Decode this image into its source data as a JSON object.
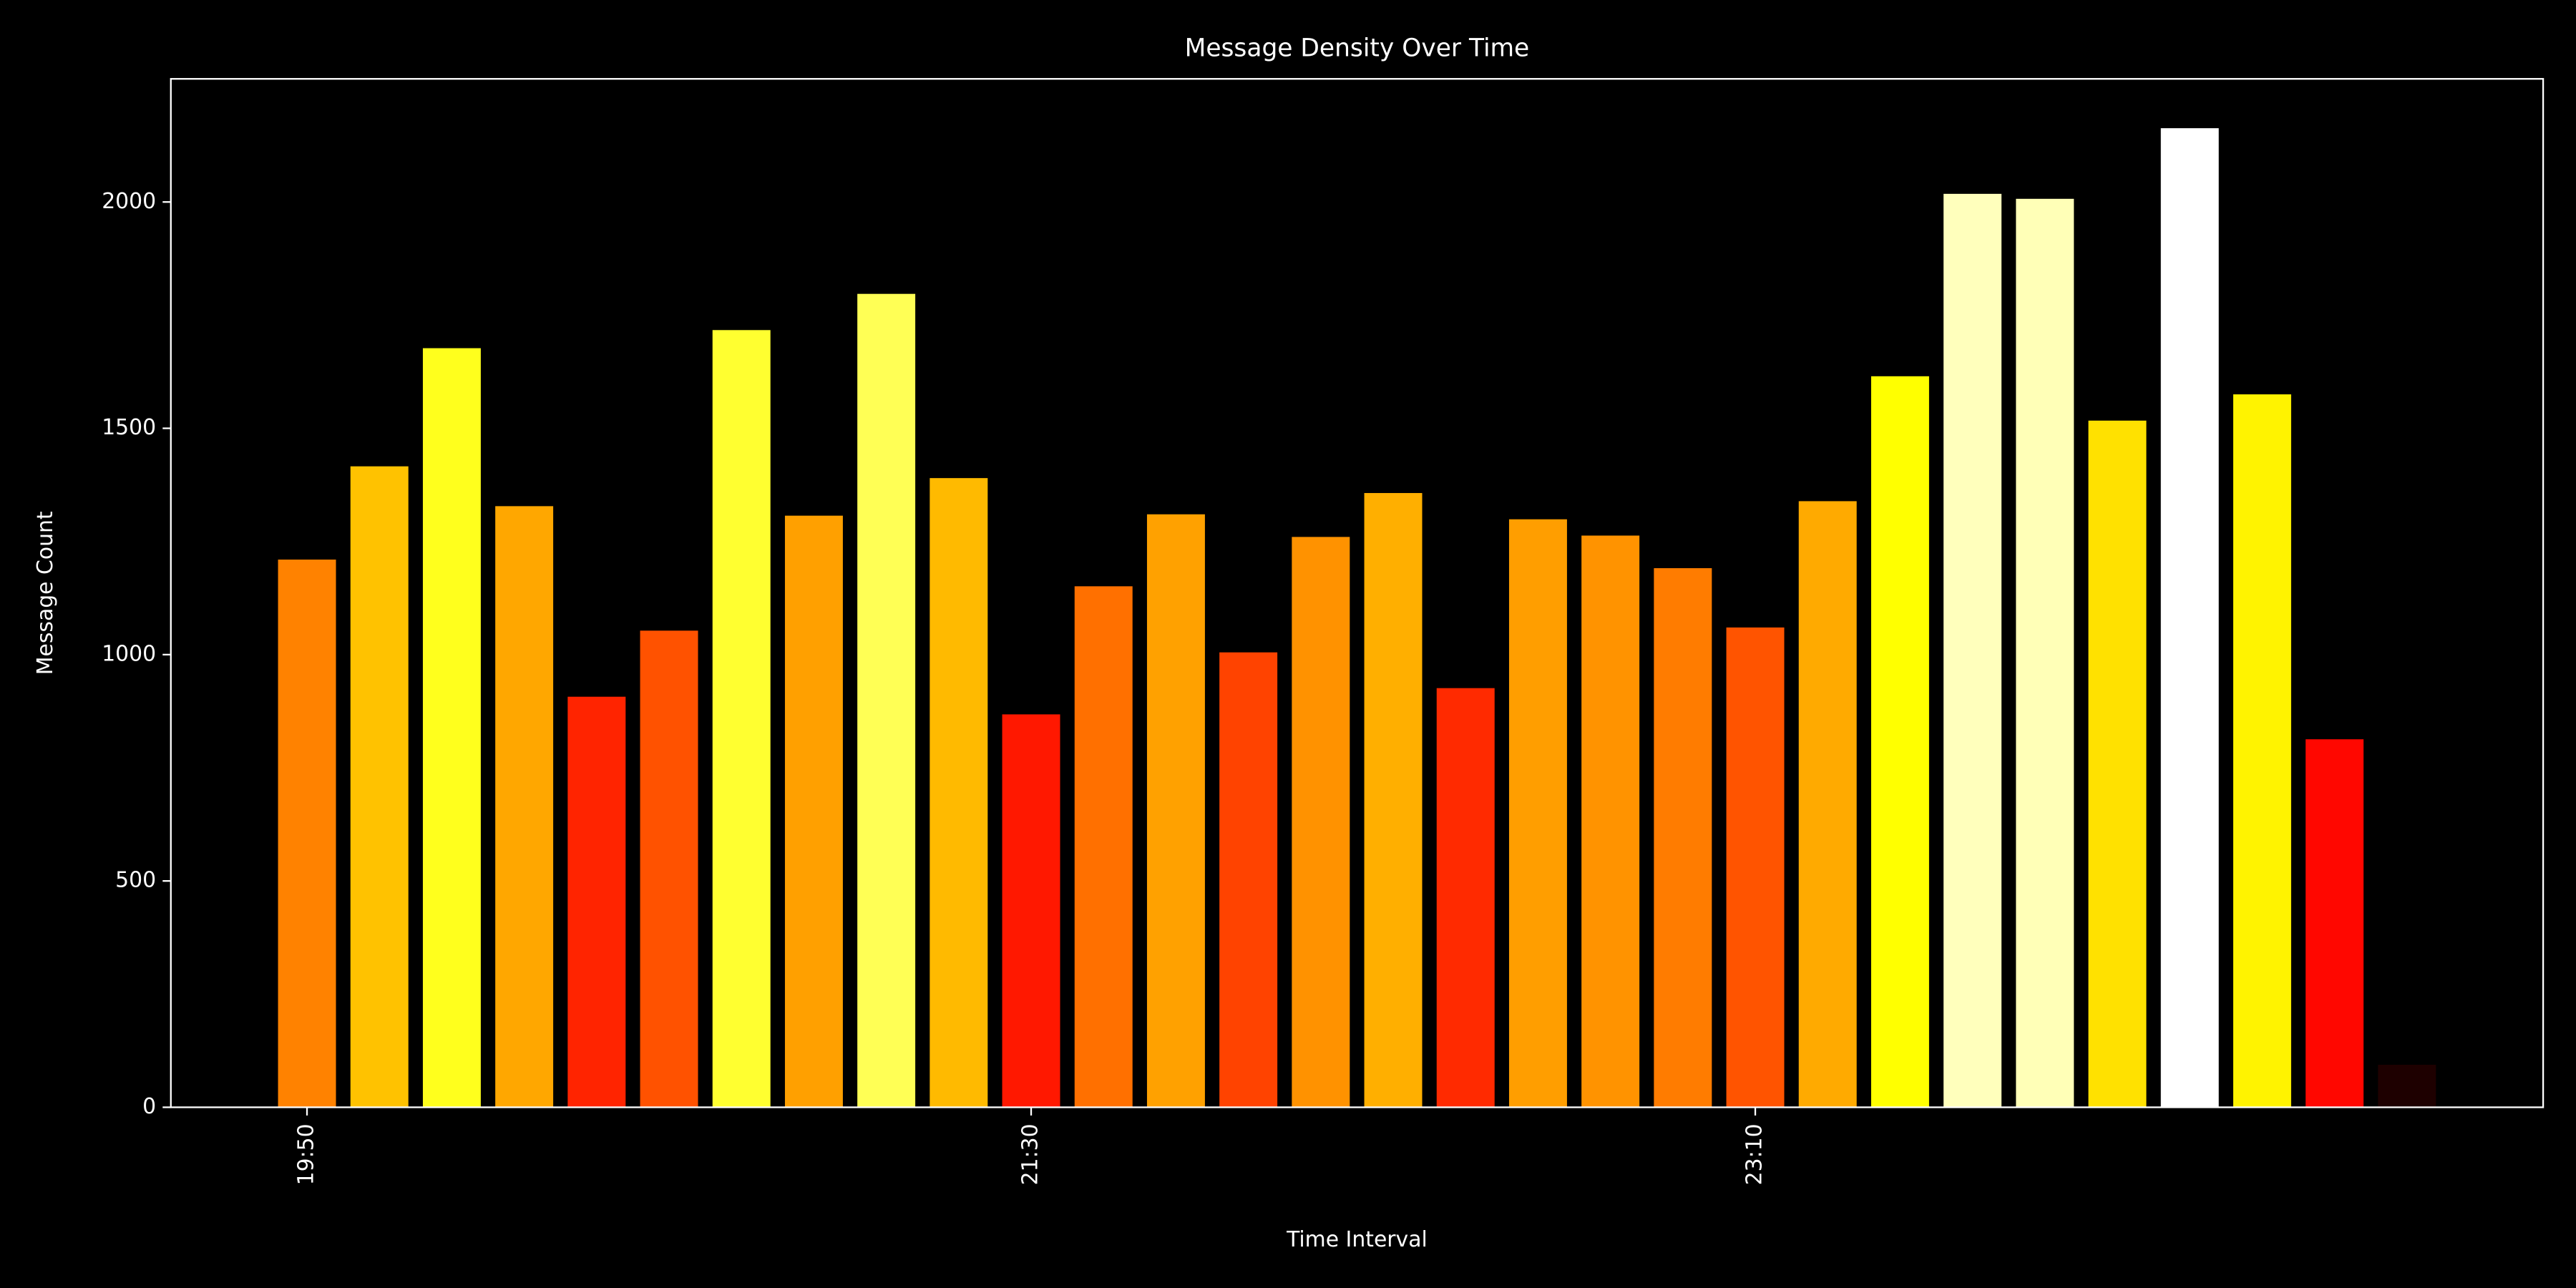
{
  "chart_data": {
    "type": "bar",
    "title": "Message Density Over Time",
    "xlabel": "Time Interval",
    "ylabel": "Message Count",
    "categories": [
      "19:50",
      null,
      null,
      null,
      null,
      null,
      null,
      null,
      null,
      null,
      "21:30",
      null,
      null,
      null,
      null,
      null,
      null,
      null,
      null,
      null,
      "23:10",
      null,
      null,
      null,
      null,
      null,
      null,
      null,
      null,
      null
    ],
    "values": [
      1210,
      1416,
      1677,
      1328,
      907,
      1053,
      1717,
      1307,
      1797,
      1390,
      868,
      1151,
      1310,
      1005,
      1260,
      1357,
      926,
      1299,
      1263,
      1191,
      1060,
      1339,
      1615,
      2018,
      2007,
      1517,
      2163,
      1575,
      813,
      94
    ],
    "colors": [
      "#ff8200",
      "#ffc200",
      "#ffff1d",
      "#ffa700",
      "#ff2400",
      "#ff5200",
      "#ffff30",
      "#ffa000",
      "#ffff55",
      "#ffba00",
      "#ff1800",
      "#ff7000",
      "#ffa100",
      "#ff4300",
      "#ff9200",
      "#ffaf00",
      "#ff2a00",
      "#ff9e00",
      "#ff9300",
      "#ff7c00",
      "#ff5400",
      "#ffaa00",
      "#ffff00",
      "#ffffbc",
      "#ffffb7",
      "#ffe100",
      "#ffffff",
      "#fff300",
      "#ff0700",
      "#1e0000"
    ],
    "ylim": [
      0,
      2272
    ],
    "yticks": [
      0,
      500,
      1000,
      1500,
      2000
    ],
    "background": "#000000",
    "axis_color": "#ffffff"
  }
}
